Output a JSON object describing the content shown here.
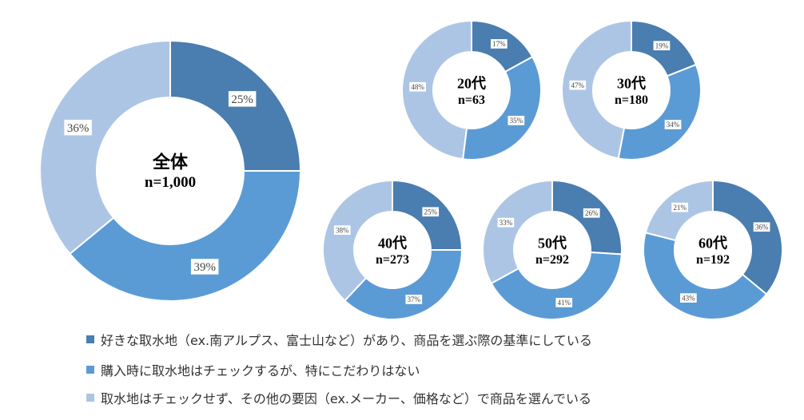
{
  "chart_data": [
    {
      "type": "pie",
      "donut": true,
      "title": "全体",
      "subtitle": "n=1,000",
      "values": [
        25,
        39,
        36
      ]
    },
    {
      "type": "pie",
      "donut": true,
      "title": "20代",
      "subtitle": "n=63",
      "values": [
        17,
        35,
        48
      ]
    },
    {
      "type": "pie",
      "donut": true,
      "title": "30代",
      "subtitle": "n=180",
      "values": [
        19,
        34,
        47
      ]
    },
    {
      "type": "pie",
      "donut": true,
      "title": "40代",
      "subtitle": "n=273",
      "values": [
        25,
        37,
        38
      ]
    },
    {
      "type": "pie",
      "donut": true,
      "title": "50代",
      "subtitle": "n=292",
      "values": [
        26,
        41,
        33
      ]
    },
    {
      "type": "pie",
      "donut": true,
      "title": "60代",
      "subtitle": "n=192",
      "values": [
        36,
        43,
        21
      ]
    }
  ],
  "legend": [
    {
      "label": "好きな取水地（ex.南アルプス、富士山など）があり、商品を選ぶ際の基準にしている",
      "color": "#4a7db0"
    },
    {
      "label": "購入時に取水地はチェックするが、特にこだわりはない",
      "color": "#5b9bd5"
    },
    {
      "label": "取水地はチェックせず、その他の要因（ex.メーカー、価格など）で商品を選んでいる",
      "color": "#adc5e5"
    }
  ]
}
